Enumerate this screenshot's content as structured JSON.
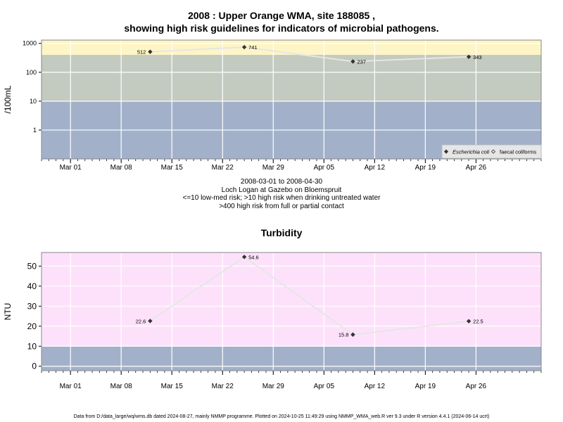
{
  "page": {
    "title_line1": "2008 : Upper Orange WMA, site 188085 ,",
    "title_line2": "showing high risk guidelines for indicators of microbial pathogens.",
    "subtitle_lines": [
      "2008-03-01 to 2008-04-30",
      "Loch Logan at Gazebo on Bloemspruit",
      "<=10 low-med risk; >10 high risk when drinking untreated water",
      ">400 high risk from full or partial contact"
    ],
    "footer": "Data from D:/data_large/wq/wms.db dated 2024-08-27, mainly NMMP programme. Plotted on 2024-10-25 11:49:29 using NMMP_WMA_web.R ver 9.3 under R version 4.4.1 (2024-06-14 ucrt)"
  },
  "colors": {
    "band_low": "#a2b1c9",
    "band_mid": "#c3cac0",
    "band_high": "#fdf5c6",
    "band_turb": "#fde1fb",
    "line": "#e6e6e6",
    "marker": "#333333",
    "grid": "#ffffff"
  },
  "chart_data": [
    {
      "type": "line",
      "title": "",
      "ylabel": "/100mL",
      "xlabel": "",
      "x_tick_labels": [
        "Mar 01",
        "Mar 08",
        "Mar 15",
        "Mar 22",
        "Mar 29",
        "Apr 05",
        "Apr 12",
        "Apr 19",
        "Apr 26"
      ],
      "x_tick_dates": [
        "2008-03-01",
        "2008-03-08",
        "2008-03-15",
        "2008-03-22",
        "2008-03-29",
        "2008-04-05",
        "2008-04-12",
        "2008-04-19",
        "2008-04-26"
      ],
      "xlim": [
        "2008-02-26",
        "2008-05-05"
      ],
      "y_scale": "log",
      "y_tick_labels": [
        "1",
        "10",
        "100",
        "1000"
      ],
      "y_ticks": [
        1,
        10,
        100,
        1000
      ],
      "ylim": [
        0.1,
        1300
      ],
      "bands": [
        {
          "from": 0.1,
          "to": 10,
          "color": "#a2b1c9"
        },
        {
          "from": 10,
          "to": 400,
          "color": "#c3cac0"
        },
        {
          "from": 400,
          "to": 1300,
          "color": "#fdf5c6"
        }
      ],
      "grid": true,
      "legend_position": "bottom-right",
      "legend": [
        {
          "label": "Escherichia coli",
          "marker": "filled-diamond",
          "italic": true
        },
        {
          "label": "faecal coliforms",
          "marker": "open-diamond",
          "italic": false
        }
      ],
      "series": [
        {
          "name": "Escherichia coli",
          "points": [
            {
              "x": "2008-03-12",
              "y": 512,
              "label": "512",
              "label_side": "left"
            },
            {
              "x": "2008-03-25",
              "y": 741,
              "label": "741",
              "label_side": "right"
            },
            {
              "x": "2008-04-09",
              "y": 237,
              "label": "237",
              "label_side": "right"
            },
            {
              "x": "2008-04-25",
              "y": 343,
              "label": "343",
              "label_side": "right"
            }
          ]
        }
      ]
    },
    {
      "type": "line",
      "title": "Turbidity",
      "ylabel": "NTU",
      "xlabel": "",
      "x_tick_labels": [
        "Mar 01",
        "Mar 08",
        "Mar 15",
        "Mar 22",
        "Mar 29",
        "Apr 05",
        "Apr 12",
        "Apr 19",
        "Apr 26"
      ],
      "x_tick_dates": [
        "2008-03-01",
        "2008-03-08",
        "2008-03-15",
        "2008-03-22",
        "2008-03-29",
        "2008-04-05",
        "2008-04-12",
        "2008-04-19",
        "2008-04-26"
      ],
      "xlim": [
        "2008-02-26",
        "2008-05-05"
      ],
      "y_scale": "linear",
      "y_tick_labels": [
        "0",
        "10",
        "20",
        "30",
        "40",
        "50"
      ],
      "y_ticks": [
        0,
        10,
        20,
        30,
        40,
        50
      ],
      "ylim": [
        -2.2,
        56.8
      ],
      "bands": [
        {
          "from": -2.2,
          "to": 10,
          "color": "#a2b1c9"
        },
        {
          "from": 10,
          "to": 56.8,
          "color": "#fde1fb"
        }
      ],
      "grid": true,
      "series": [
        {
          "name": "",
          "points": [
            {
              "x": "2008-03-12",
              "y": 22.6,
              "label": "22.6",
              "label_side": "left"
            },
            {
              "x": "2008-03-25",
              "y": 54.6,
              "label": "54.6",
              "label_side": "right"
            },
            {
              "x": "2008-04-09",
              "y": 15.8,
              "label": "15.8",
              "label_side": "left"
            },
            {
              "x": "2008-04-25",
              "y": 22.5,
              "label": "22.5",
              "label_side": "right"
            }
          ]
        }
      ]
    }
  ]
}
